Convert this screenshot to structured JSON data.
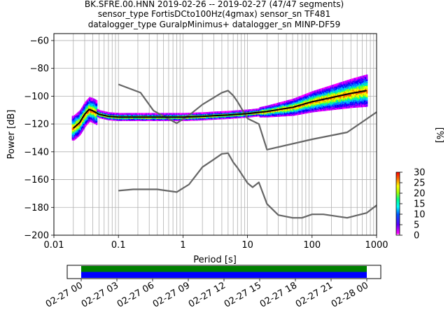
{
  "chart_data": [
    {
      "type": "line",
      "title_lines": [
        "BK.SFRE.00.HNN   2019-02-26 -- 2019-02-27  (47/47 segments)",
        "sensor_type FortisDCto100Hz(4gmax) sensor_sn TF481",
        "datalogger_type GuralpMinimus+ datalogger_sn MINP-DF59"
      ],
      "xlabel": "Period [s]",
      "ylabel": "Power [dB]",
      "xscale": "log",
      "xlim": [
        0.01,
        1000
      ],
      "ylim": [
        -200,
        -55
      ],
      "grid": true,
      "xticks": [
        0.01,
        0.1,
        1,
        10,
        100,
        1000
      ],
      "xtick_labels": [
        "0.01",
        "0.1",
        "1",
        "10",
        "100",
        "1000"
      ],
      "yticks": [
        -200,
        -180,
        -160,
        -140,
        -120,
        -100,
        -80,
        -60
      ],
      "ytick_labels": [
        "−200",
        "−180",
        "−160",
        "−140",
        "−120",
        "−100",
        "−80",
        "−60"
      ],
      "series": [
        {
          "color": "#666666",
          "x": [
            0.1,
            0.22,
            0.35,
            0.8,
            1.3,
            2.0,
            3.0,
            4.0,
            5.0,
            6.0,
            7.0,
            10.0,
            15.0,
            20.0,
            100.0,
            350.0,
            1000.0
          ],
          "y": [
            -91.5,
            -97.5,
            -110.5,
            -119.5,
            -113.0,
            -106.0,
            -101.0,
            -97.5,
            -96.0,
            -99.5,
            -104.0,
            -116.0,
            -120.0,
            -138.5,
            -131.0,
            -126.0,
            -111.5
          ]
        },
        {
          "color": "#666666",
          "x": [
            0.1,
            0.17,
            0.4,
            0.8,
            1.24,
            2.0,
            3.0,
            4.0,
            5.0,
            6.0,
            7.0,
            10.0,
            12.0,
            15.0,
            20.0,
            30.0,
            50.0,
            70.0,
            100.0,
            150.0,
            350.0,
            700.0,
            1000.0
          ],
          "y": [
            -168.0,
            -167.0,
            -167.0,
            -169.0,
            -163.5,
            -151.0,
            -145.5,
            -141.5,
            -141.0,
            -147.5,
            -151.5,
            -162.5,
            -165.5,
            -162.0,
            -177.5,
            -185.5,
            -187.5,
            -187.5,
            -185.0,
            -185.0,
            -187.5,
            -184.0,
            -178.5
          ]
        },
        {
          "color": "#000000",
          "x": [
            0.02,
            0.025,
            0.03,
            0.035,
            0.04,
            0.05,
            0.07,
            0.1,
            0.2,
            0.5,
            1.0,
            2.0,
            3.0,
            5.0,
            10.0,
            20.0,
            50.0,
            100.0,
            200.0,
            400.0,
            700.0
          ],
          "y": [
            -123.0,
            -119.0,
            -113.0,
            -109.5,
            -110.5,
            -113.0,
            -114.5,
            -115.0,
            -115.0,
            -115.0,
            -115.0,
            -114.5,
            -114.0,
            -113.5,
            -112.5,
            -111.0,
            -108.0,
            -104.0,
            -101.0,
            -98.0,
            -96.0
          ]
        }
      ],
      "colorbar": {
        "label": "[%]",
        "range": [
          0,
          30
        ],
        "ticks": [
          0,
          5,
          10,
          15,
          20,
          25,
          30
        ],
        "tick_labels": [
          "0",
          "5",
          "10",
          "15",
          "20",
          "25",
          "30"
        ]
      }
    },
    {
      "type": "timeline",
      "xtick_labels": [
        "02-27 00",
        "02-27 03",
        "02-27 06",
        "02-27 09",
        "02-27 12",
        "02-27 15",
        "02-27 18",
        "02-27 21",
        "02-28 00"
      ],
      "bands": [
        {
          "color": "#008000",
          "start": "02-27 00",
          "end": "02-28 00"
        },
        {
          "color": "#0000ff",
          "start": "02-27 00",
          "end": "02-28 00"
        }
      ]
    }
  ]
}
